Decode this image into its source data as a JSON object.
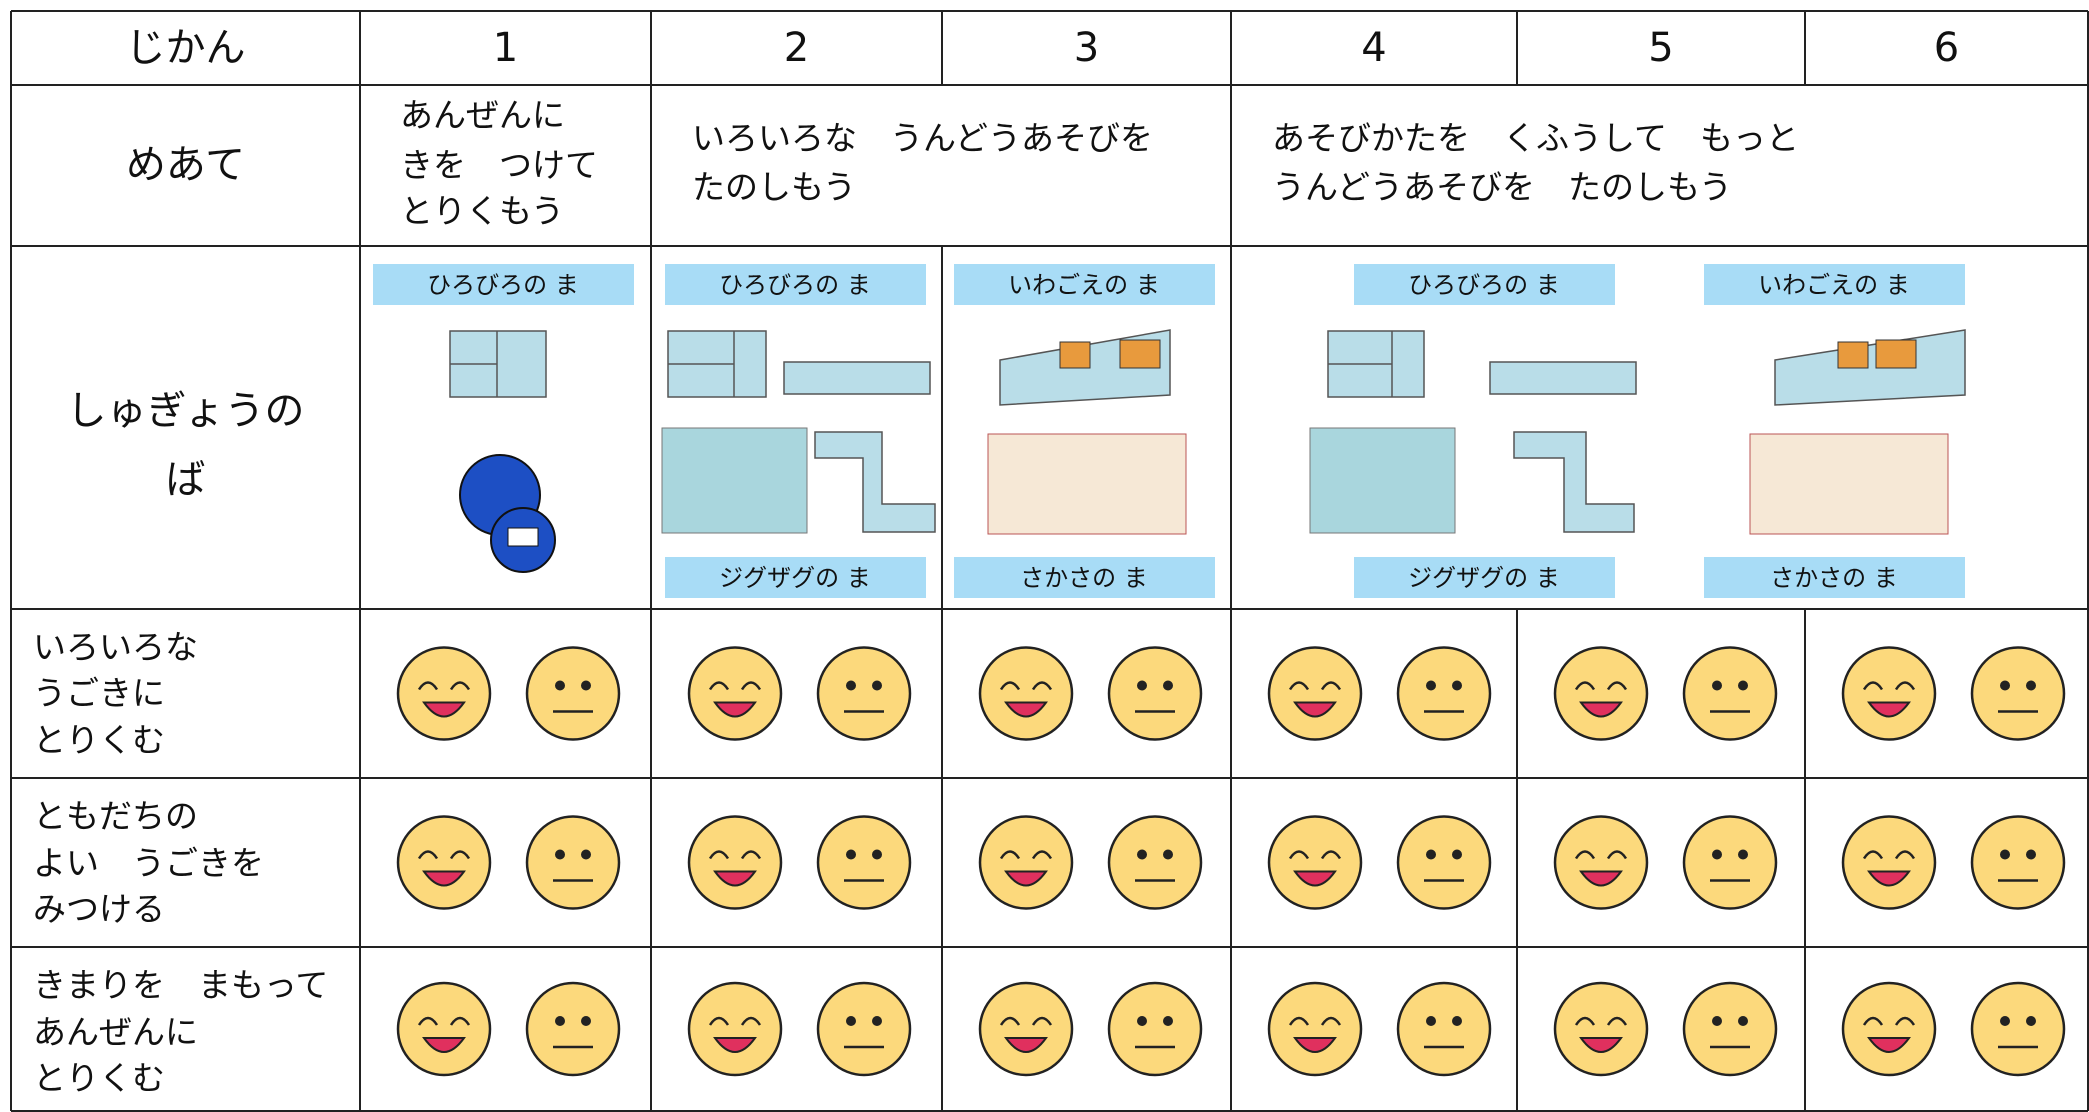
{
  "header": {
    "label": "じかん",
    "periods": [
      "1",
      "2",
      "3",
      "4",
      "5",
      "6"
    ]
  },
  "goals": {
    "label": "めあて",
    "items": [
      [
        "あんぜんに",
        "きを　つけて",
        "とりくもう"
      ],
      [
        "いろいろな　うんどうあそびを",
        "たのしもう"
      ],
      [
        "あそびかたを　くふうして　もっと",
        "うんどうあそびを　たのしもう"
      ]
    ]
  },
  "training_area": {
    "label": [
      "しゅぎょうの",
      "ば"
    ],
    "areas": [
      "ひろびろの ま",
      "ひろびろの ま",
      "ジグザグの ま",
      "いわごえの ま",
      "さかさの ま",
      "ひろびろの ま",
      "ジグザグの ま",
      "いわごえの ま",
      "さかさの ま"
    ]
  },
  "evaluation": {
    "rows": [
      {
        "label": [
          "いろいろな",
          "うごきに",
          "とりくむ"
        ]
      },
      {
        "label": [
          "ともだちの",
          "よい　うごきを",
          "みつける"
        ]
      },
      {
        "label": [
          "きまりを　まもって",
          "あんぜんに",
          "とりくむ"
        ]
      }
    ]
  }
}
